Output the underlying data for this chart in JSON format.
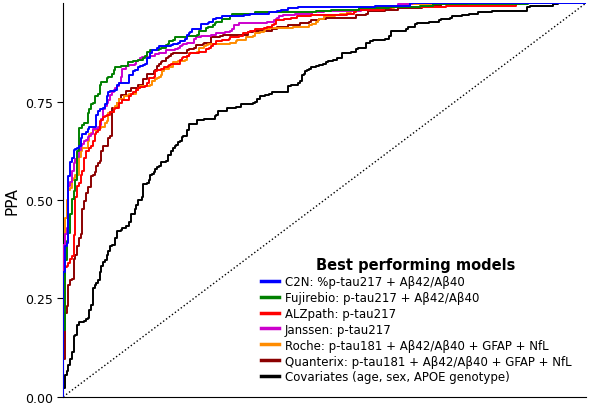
{
  "ylabel": "PPA",
  "yticks": [
    0.0,
    0.25,
    0.5,
    0.75
  ],
  "xlim": [
    0,
    1
  ],
  "ylim": [
    0,
    1
  ],
  "legend_title": "Best performing models",
  "legend_title_fontsize": 10.5,
  "legend_fontsize": 8.5,
  "curves": [
    {
      "label": "C2N: %p-tau217 + Aβ42/Aβ40",
      "color": "#0000FF",
      "rank": 1,
      "auc": 0.945,
      "seed": 101
    },
    {
      "label": "Fujirebio: p-tau217 + Aβ42/Aβ40",
      "color": "#008000",
      "rank": 2,
      "auc": 0.938,
      "seed": 102
    },
    {
      "label": "ALZpath: p-tau217",
      "color": "#FF0000",
      "rank": 3,
      "auc": 0.93,
      "seed": 103
    },
    {
      "label": "Janssen: p-tau217",
      "color": "#CC00CC",
      "rank": 4,
      "auc": 0.924,
      "seed": 104
    },
    {
      "label": "Roche: p-tau181 + Aβ42/Aβ40 + GFAP + NfL",
      "color": "#FF8C00",
      "rank": 5,
      "auc": 0.912,
      "seed": 105
    },
    {
      "label": "Quanterix: p-tau181 + Aβ42/Aβ40 + GFAP + NfL",
      "color": "#8B0000",
      "rank": 6,
      "auc": 0.9,
      "seed": 106
    },
    {
      "label": "Covariates (age, sex, APOE genotype)",
      "color": "#000000",
      "rank": 7,
      "auc": 0.78,
      "seed": 107
    }
  ],
  "background_color": "#FFFFFF",
  "linewidth": 1.4
}
